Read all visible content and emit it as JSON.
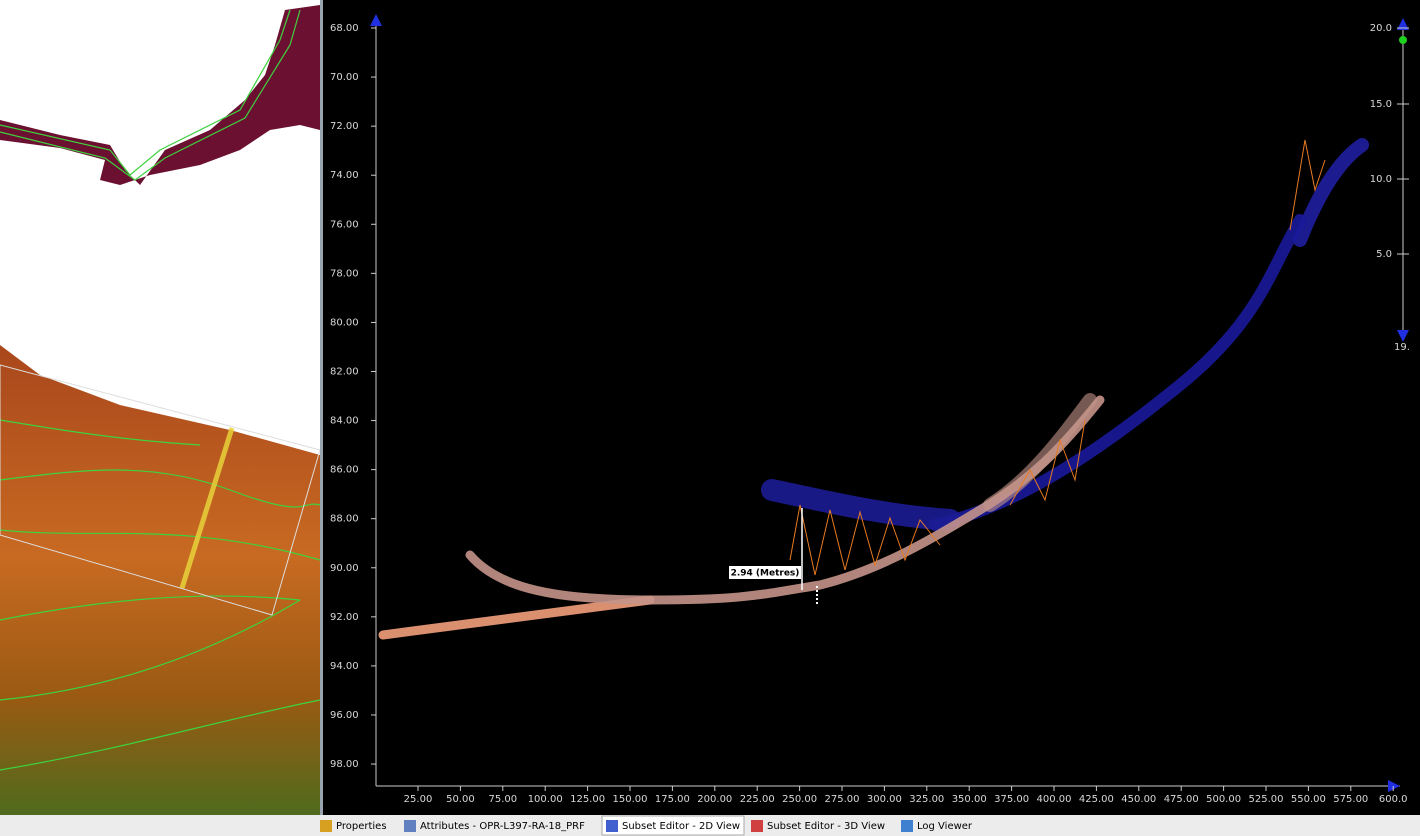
{
  "profile_view": {
    "y_axis_labels": [
      "68.00",
      "70.00",
      "72.00",
      "74.00",
      "76.00",
      "78.00",
      "80.00",
      "82.00",
      "84.00",
      "86.00",
      "88.00",
      "90.00",
      "92.00",
      "94.00",
      "96.00",
      "98.00"
    ],
    "x_axis_labels": [
      "25.00",
      "50.00",
      "75.00",
      "100.00",
      "125.00",
      "150.00",
      "175.00",
      "200.00",
      "225.00",
      "250.00",
      "275.00",
      "300.00",
      "325.00",
      "350.00",
      "375.00",
      "400.00",
      "425.00",
      "450.00",
      "475.00",
      "500.00",
      "525.00",
      "550.00",
      "575.00",
      "600.0"
    ],
    "scale_labels": [
      "20.0",
      "15.0",
      "10.0",
      "5.0",
      "19."
    ],
    "measurement_label": "2.94 (Metres)"
  },
  "tabs": [
    "Properties",
    "Attributes - OPR-L397-RA-18_PRF",
    "Subset Editor - 2D View",
    "Subset Editor - 3D View",
    "Log Viewer"
  ]
}
